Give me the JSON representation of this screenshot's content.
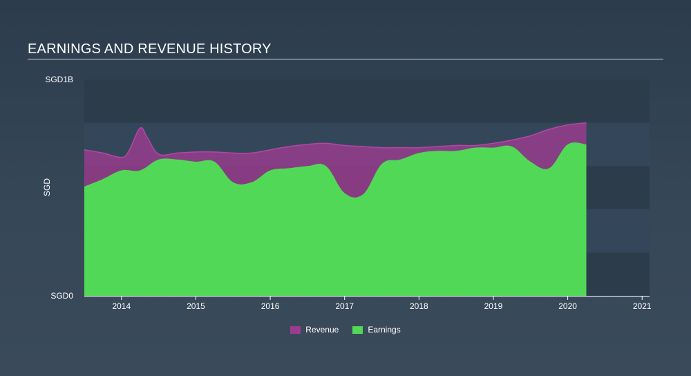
{
  "title": "EARNINGS AND REVENUE HISTORY",
  "colors": {
    "revenue": "#9b3c8f",
    "earnings": "#52d857",
    "band_dark": "#2d3c4b",
    "band_light": "#34475a"
  },
  "legend": {
    "revenue_label": "Revenue",
    "earnings_label": "Earnings"
  },
  "chart_data": {
    "type": "area",
    "title": "EARNINGS AND REVENUE HISTORY",
    "xlabel": "",
    "ylabel": "SGD",
    "y_tick_labels": [
      "SGD0",
      "SGD1B"
    ],
    "xlim": [
      2013.5,
      2021.1
    ],
    "ylim": [
      0,
      1.0
    ],
    "y_unit": "billion SGD",
    "x_ticks": [
      2014,
      2015,
      2016,
      2017,
      2018,
      2019,
      2020,
      2021
    ],
    "x_tick_labels": [
      "2014",
      "2015",
      "2016",
      "2017",
      "2018",
      "2019",
      "2020",
      "2021"
    ],
    "legend_position": "bottom-center",
    "series": [
      {
        "name": "Revenue",
        "x": [
          2013.5,
          2013.75,
          2014.0,
          2014.1,
          2014.25,
          2014.35,
          2014.5,
          2014.75,
          2015.0,
          2015.25,
          2015.5,
          2015.75,
          2016.0,
          2016.25,
          2016.5,
          2016.75,
          2017.0,
          2017.25,
          2017.5,
          2017.75,
          2018.0,
          2018.25,
          2018.5,
          2018.75,
          2019.0,
          2019.25,
          2019.5,
          2019.75,
          2020.0,
          2020.25
        ],
        "values": [
          0.675,
          0.66,
          0.64,
          0.67,
          0.775,
          0.73,
          0.655,
          0.66,
          0.665,
          0.665,
          0.66,
          0.66,
          0.675,
          0.69,
          0.7,
          0.705,
          0.695,
          0.69,
          0.685,
          0.685,
          0.685,
          0.69,
          0.695,
          0.695,
          0.705,
          0.72,
          0.74,
          0.77,
          0.79,
          0.8
        ]
      },
      {
        "name": "Earnings",
        "x": [
          2013.5,
          2013.75,
          2014.0,
          2014.25,
          2014.5,
          2014.75,
          2015.0,
          2015.25,
          2015.5,
          2015.75,
          2016.0,
          2016.25,
          2016.5,
          2016.75,
          2017.0,
          2017.25,
          2017.5,
          2017.75,
          2018.0,
          2018.25,
          2018.5,
          2018.75,
          2019.0,
          2019.25,
          2019.5,
          2019.75,
          2020.0,
          2020.25
        ],
        "values": [
          0.505,
          0.54,
          0.58,
          0.58,
          0.63,
          0.63,
          0.62,
          0.62,
          0.525,
          0.525,
          0.58,
          0.59,
          0.6,
          0.6,
          0.475,
          0.47,
          0.61,
          0.63,
          0.66,
          0.67,
          0.67,
          0.685,
          0.685,
          0.69,
          0.62,
          0.59,
          0.7,
          0.7
        ]
      }
    ]
  }
}
